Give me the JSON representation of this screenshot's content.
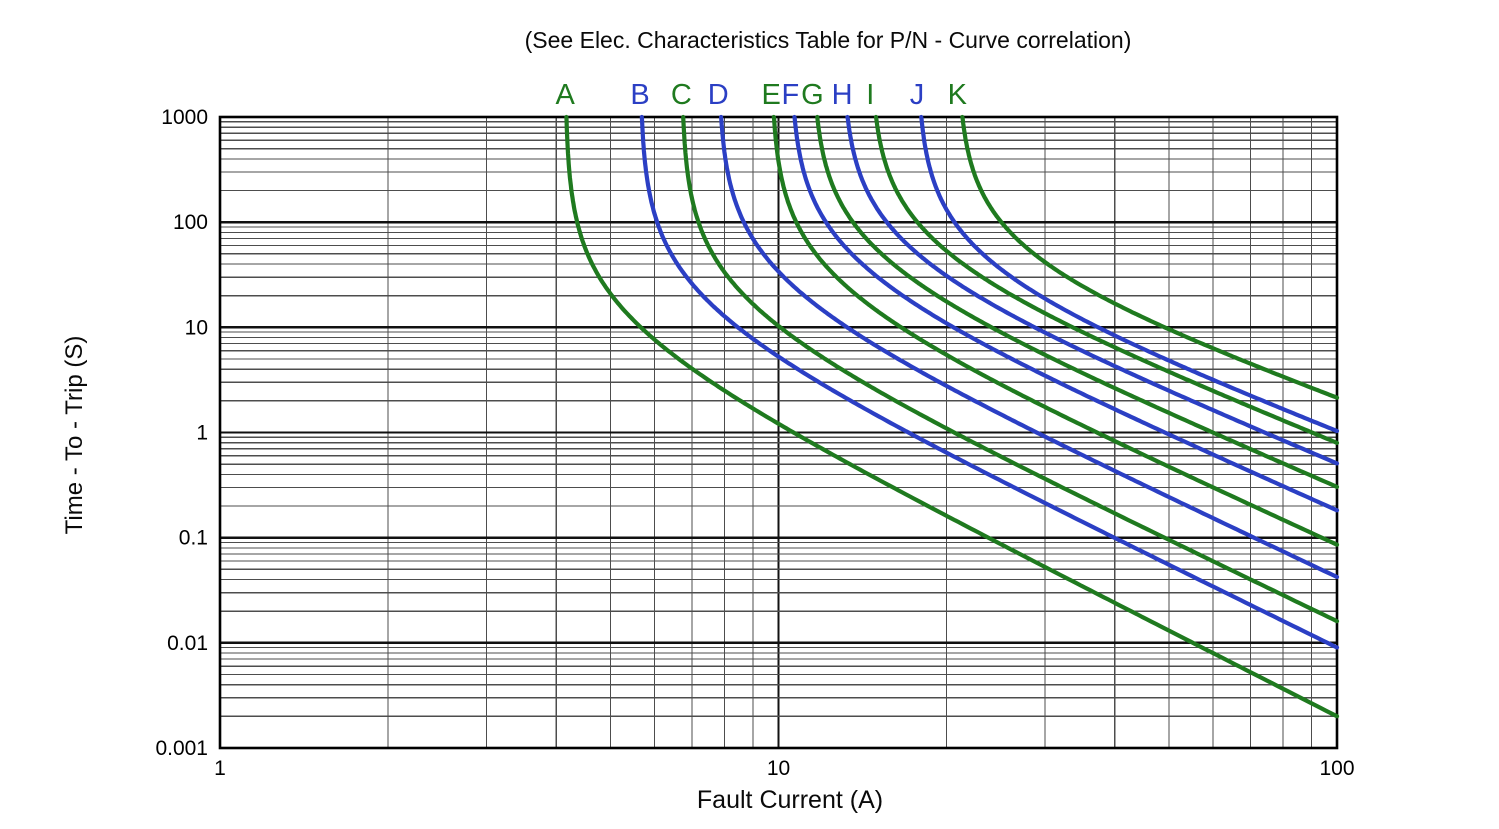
{
  "chart_data": {
    "type": "line",
    "title": "(See Elec. Characteristics Table for P/N - Curve correlation)",
    "xlabel": "Fault Current (A)",
    "ylabel": "Time - To - Trip (S)",
    "x_scale": "log",
    "y_scale": "log",
    "xlim": [
      1,
      100
    ],
    "ylim": [
      0.001,
      1000
    ],
    "x_ticks": [
      1,
      10,
      100
    ],
    "y_ticks": [
      1000,
      100,
      10,
      1,
      0.1,
      0.01,
      0.001
    ],
    "grid": "log major and minor gridlines on both axes",
    "legend_position": "curve letters above plot, at each curve's vertical asymptote",
    "colors": {
      "green": "#1f7a1f",
      "blue": "#2b3fc4"
    },
    "grid_colors": {
      "minor": "#4d4d4d",
      "major": "#111111"
    },
    "series": [
      {
        "name": "A",
        "color": "green",
        "min_trip_current_A": 4.15,
        "time_at_100A_s": 0.002,
        "slope_exp": 2.7
      },
      {
        "name": "B",
        "color": "blue",
        "min_trip_current_A": 5.65,
        "time_at_100A_s": 0.009,
        "slope_exp": 2.6
      },
      {
        "name": "C",
        "color": "green",
        "min_trip_current_A": 6.7,
        "time_at_100A_s": 0.016,
        "slope_exp": 2.55
      },
      {
        "name": "D",
        "color": "blue",
        "min_trip_current_A": 7.8,
        "time_at_100A_s": 0.042,
        "slope_exp": 2.5
      },
      {
        "name": "E",
        "color": "green",
        "min_trip_current_A": 9.7,
        "time_at_100A_s": 0.085,
        "slope_exp": 2.42
      },
      {
        "name": "F",
        "color": "blue",
        "min_trip_current_A": 10.5,
        "time_at_100A_s": 0.18,
        "slope_exp": 2.35
      },
      {
        "name": "G",
        "color": "green",
        "min_trip_current_A": 11.5,
        "time_at_100A_s": 0.3,
        "slope_exp": 2.28
      },
      {
        "name": "H",
        "color": "blue",
        "min_trip_current_A": 13.0,
        "time_at_100A_s": 0.5,
        "slope_exp": 2.22
      },
      {
        "name": "I",
        "color": "green",
        "min_trip_current_A": 14.6,
        "time_at_100A_s": 0.78,
        "slope_exp": 2.15
      },
      {
        "name": "J",
        "color": "blue",
        "min_trip_current_A": 17.7,
        "time_at_100A_s": 1.0,
        "slope_exp": 2.08
      },
      {
        "name": "K",
        "color": "green",
        "min_trip_current_A": 20.9,
        "time_at_100A_s": 2.05,
        "slope_exp": 1.95
      }
    ]
  }
}
